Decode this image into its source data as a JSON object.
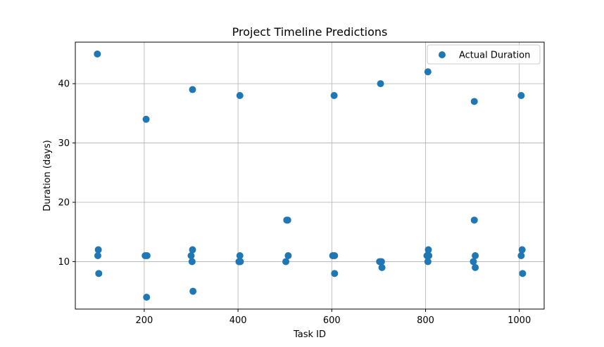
{
  "chart_data": {
    "type": "scatter",
    "title": "Project Timeline Predictions",
    "xlabel": "Task ID",
    "ylabel": "Duration (days)",
    "xlim": [
      53,
      1053
    ],
    "ylim": [
      2,
      47
    ],
    "xticks": [
      200,
      400,
      600,
      800,
      1000
    ],
    "yticks": [
      10,
      20,
      30,
      40
    ],
    "grid": true,
    "legend_position": "top-right",
    "series": [
      {
        "name": "Actual Duration",
        "color": "#1f77b4",
        "points": [
          {
            "x": 100,
            "y": 45
          },
          {
            "x": 102,
            "y": 12
          },
          {
            "x": 101,
            "y": 11
          },
          {
            "x": 103,
            "y": 8
          },
          {
            "x": 204,
            "y": 34
          },
          {
            "x": 202,
            "y": 11
          },
          {
            "x": 206,
            "y": 11
          },
          {
            "x": 205,
            "y": 4
          },
          {
            "x": 303,
            "y": 39
          },
          {
            "x": 303,
            "y": 12
          },
          {
            "x": 300,
            "y": 11
          },
          {
            "x": 302,
            "y": 10
          },
          {
            "x": 304,
            "y": 5
          },
          {
            "x": 404,
            "y": 38
          },
          {
            "x": 404,
            "y": 11
          },
          {
            "x": 402,
            "y": 10
          },
          {
            "x": 405,
            "y": 10
          },
          {
            "x": 504,
            "y": 17
          },
          {
            "x": 506,
            "y": 17
          },
          {
            "x": 507,
            "y": 11
          },
          {
            "x": 502,
            "y": 10
          },
          {
            "x": 605,
            "y": 38
          },
          {
            "x": 602,
            "y": 11
          },
          {
            "x": 606,
            "y": 11
          },
          {
            "x": 606,
            "y": 8
          },
          {
            "x": 704,
            "y": 40
          },
          {
            "x": 702,
            "y": 10
          },
          {
            "x": 706,
            "y": 10
          },
          {
            "x": 707,
            "y": 9
          },
          {
            "x": 805,
            "y": 42
          },
          {
            "x": 806,
            "y": 12
          },
          {
            "x": 803,
            "y": 11
          },
          {
            "x": 807,
            "y": 11
          },
          {
            "x": 805,
            "y": 10
          },
          {
            "x": 904,
            "y": 37
          },
          {
            "x": 904,
            "y": 17
          },
          {
            "x": 906,
            "y": 11
          },
          {
            "x": 902,
            "y": 10
          },
          {
            "x": 906,
            "y": 9
          },
          {
            "x": 1004,
            "y": 38
          },
          {
            "x": 1006,
            "y": 12
          },
          {
            "x": 1004,
            "y": 11
          },
          {
            "x": 1007,
            "y": 8
          }
        ]
      }
    ]
  }
}
